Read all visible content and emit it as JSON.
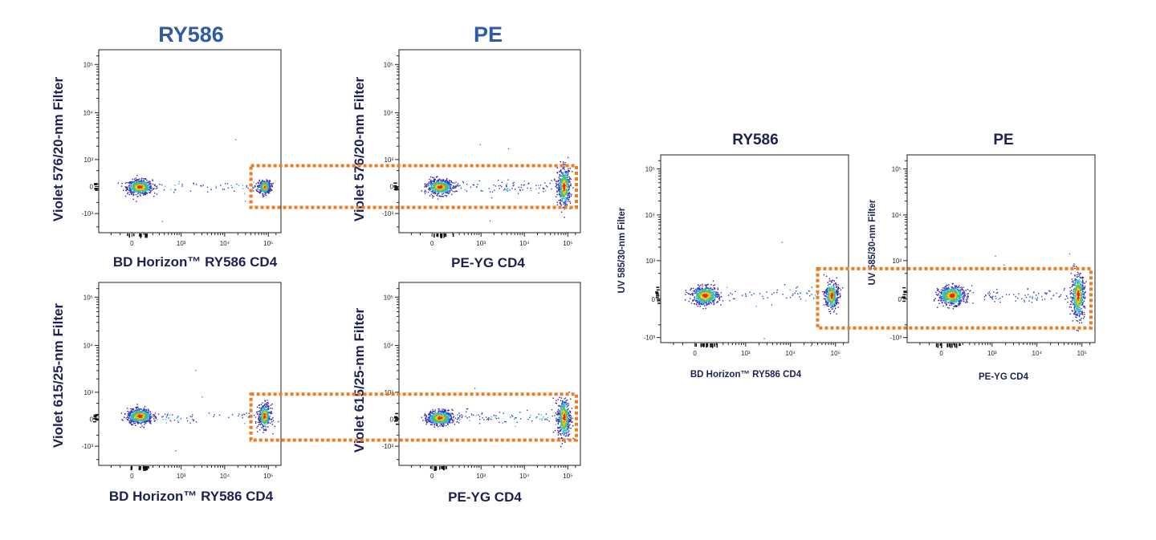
{
  "colors": {
    "title_blue": "#2f5aa6",
    "label_navy": "#1c2152",
    "gate_orange": "#f07a20"
  },
  "chart_data": [
    {
      "type": "scatter",
      "subtype": "flow-cytometry-density-dot-plot",
      "title": "RY586",
      "xlabel": "BD Horizon™ RY586 CD4",
      "ylabel": "Violet 576/20-nm Filter",
      "xscale": "biexponential",
      "yscale": "biexponential",
      "xlim": [
        -420,
        195000
      ],
      "ylim": [
        -2660,
        201000
      ],
      "xticks": [
        {
          "value": 0,
          "label": "0"
        },
        {
          "value": 1000,
          "label": "10³"
        },
        {
          "value": 10000,
          "label": "10⁴"
        },
        {
          "value": 100000,
          "label": "10⁵"
        }
      ],
      "yticks": [
        {
          "value": -1000,
          "label": "-10³"
        },
        {
          "value": 0,
          "label": "0"
        },
        {
          "value": 1000,
          "label": "10³"
        },
        {
          "value": 10000,
          "label": "10⁴"
        },
        {
          "value": 100000,
          "label": "10⁵"
        }
      ],
      "populations": [
        {
          "x": 60,
          "y": 0,
          "events": 650
        },
        {
          "x": 80000,
          "y": 0,
          "events": 380
        }
      ],
      "gate": {
        "x_min": 40000,
        "y_min": -700,
        "y_max": 700,
        "style": "dotted",
        "color": "#f07a20"
      }
    },
    {
      "type": "scatter",
      "subtype": "flow-cytometry-density-dot-plot",
      "title": "PE",
      "xlabel": "PE-YG CD4",
      "ylabel": "Violet 576/20-nm Filter",
      "xscale": "biexponential",
      "yscale": "biexponential",
      "xlim": [
        -420,
        195000
      ],
      "ylim": [
        -2660,
        201000
      ],
      "xticks": [
        {
          "value": 0,
          "label": "0"
        },
        {
          "value": 1000,
          "label": "10³"
        },
        {
          "value": 10000,
          "label": "10⁴"
        },
        {
          "value": 100000,
          "label": "10⁵"
        }
      ],
      "yticks": [
        {
          "value": -1000,
          "label": "-10³"
        },
        {
          "value": 0,
          "label": "0"
        },
        {
          "value": 1000,
          "label": "10³"
        },
        {
          "value": 10000,
          "label": "10⁴"
        },
        {
          "value": 100000,
          "label": "10⁵"
        }
      ],
      "populations": [
        {
          "x": 60,
          "y": 0,
          "events": 650
        },
        {
          "x": 80000,
          "y": 0,
          "events": 520
        }
      ],
      "gate": {
        "x_min": 40000,
        "y_min": -700,
        "y_max": 700,
        "style": "dotted",
        "color": "#f07a20"
      }
    },
    {
      "type": "scatter",
      "subtype": "flow-cytometry-density-dot-plot",
      "title": "",
      "xlabel": "BD Horizon™ RY586 CD4",
      "ylabel": "Violet 615/25-nm Filter",
      "xscale": "biexponential",
      "yscale": "biexponential",
      "xlim": [
        -420,
        195000
      ],
      "ylim": [
        -2660,
        201000
      ],
      "xticks": [
        {
          "value": 0,
          "label": "0"
        },
        {
          "value": 1000,
          "label": "10³"
        },
        {
          "value": 10000,
          "label": "10⁴"
        },
        {
          "value": 100000,
          "label": "10⁵"
        }
      ],
      "yticks": [
        {
          "value": -1000,
          "label": "-10³"
        },
        {
          "value": 0,
          "label": "0"
        },
        {
          "value": 1000,
          "label": "10³"
        },
        {
          "value": 10000,
          "label": "10⁴"
        },
        {
          "value": 100000,
          "label": "10⁵"
        }
      ],
      "populations": [
        {
          "x": 60,
          "y": 100,
          "events": 650
        },
        {
          "x": 80000,
          "y": 100,
          "events": 400
        }
      ],
      "gate": {
        "x_min": 40000,
        "y_min": -700,
        "y_max": 900,
        "style": "dotted",
        "color": "#f07a20"
      }
    },
    {
      "type": "scatter",
      "subtype": "flow-cytometry-density-dot-plot",
      "title": "",
      "xlabel": "PE-YG CD4",
      "ylabel": "Violet 615/25-nm Filter",
      "xscale": "biexponential",
      "yscale": "biexponential",
      "xlim": [
        -420,
        195000
      ],
      "ylim": [
        -2660,
        201000
      ],
      "xticks": [
        {
          "value": 0,
          "label": "0"
        },
        {
          "value": 1000,
          "label": "10³"
        },
        {
          "value": 10000,
          "label": "10⁴"
        },
        {
          "value": 100000,
          "label": "10⁵"
        }
      ],
      "yticks": [
        {
          "value": -1000,
          "label": "-10³"
        },
        {
          "value": 0,
          "label": "0"
        },
        {
          "value": 1000,
          "label": "10³"
        },
        {
          "value": 10000,
          "label": "10⁴"
        },
        {
          "value": 100000,
          "label": "10⁵"
        }
      ],
      "populations": [
        {
          "x": 60,
          "y": 50,
          "events": 650
        },
        {
          "x": 80000,
          "y": 50,
          "events": 500
        }
      ],
      "gate": {
        "x_min": 40000,
        "y_min": -700,
        "y_max": 900,
        "style": "dotted",
        "color": "#f07a20"
      }
    },
    {
      "type": "scatter",
      "subtype": "flow-cytometry-density-dot-plot",
      "title": "RY586",
      "xlabel": "BD Horizon™ RY586 CD4",
      "ylabel": "UV 585/30-nm Filter",
      "xscale": "biexponential",
      "yscale": "biexponential",
      "xlim": [
        -420,
        195000
      ],
      "ylim": [
        -1300,
        201000
      ],
      "xticks": [
        {
          "value": 0,
          "label": "0"
        },
        {
          "value": 1000,
          "label": "10³"
        },
        {
          "value": 10000,
          "label": "10⁴"
        },
        {
          "value": 100000,
          "label": "10⁵"
        }
      ],
      "yticks": [
        {
          "value": -1000,
          "label": "-10³"
        },
        {
          "value": 0,
          "label": "0"
        },
        {
          "value": 1000,
          "label": "10³"
        },
        {
          "value": 10000,
          "label": "10⁴"
        },
        {
          "value": 100000,
          "label": "10⁵"
        }
      ],
      "populations": [
        {
          "x": 80,
          "y": 60,
          "events": 650
        },
        {
          "x": 80000,
          "y": 60,
          "events": 420
        }
      ],
      "gate": {
        "x_min": 40000,
        "y_min": -600,
        "y_max": 650,
        "style": "dotted",
        "color": "#f07a20"
      }
    },
    {
      "type": "scatter",
      "subtype": "flow-cytometry-density-dot-plot",
      "title": "PE",
      "xlabel": "PE-YG CD4",
      "ylabel": "UV 585/30-nm Filter",
      "xscale": "biexponential",
      "yscale": "biexponential",
      "xlim": [
        -420,
        195000
      ],
      "ylim": [
        -1300,
        201000
      ],
      "xticks": [
        {
          "value": 0,
          "label": "0"
        },
        {
          "value": 1000,
          "label": "10³"
        },
        {
          "value": 10000,
          "label": "10⁴"
        },
        {
          "value": 100000,
          "label": "10⁵"
        }
      ],
      "yticks": [
        {
          "value": -1000,
          "label": "-10³"
        },
        {
          "value": 0,
          "label": "0"
        },
        {
          "value": 1000,
          "label": "10³"
        },
        {
          "value": 10000,
          "label": "10⁴"
        },
        {
          "value": 100000,
          "label": "10⁵"
        }
      ],
      "populations": [
        {
          "x": 80,
          "y": 60,
          "events": 650
        },
        {
          "x": 80000,
          "y": 60,
          "events": 520
        }
      ],
      "gate": {
        "x_min": 40000,
        "y_min": -600,
        "y_max": 650,
        "style": "dotted",
        "color": "#f07a20"
      }
    }
  ]
}
